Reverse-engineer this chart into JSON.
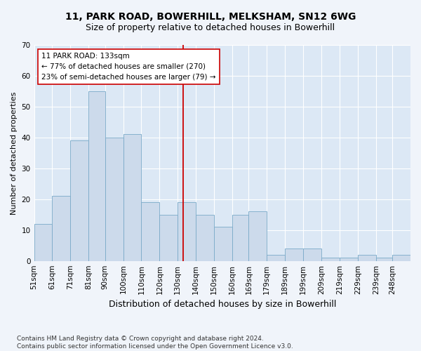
{
  "title": "11, PARK ROAD, BOWERHILL, MELKSHAM, SN12 6WG",
  "subtitle": "Size of property relative to detached houses in Bowerhill",
  "xlabel": "Distribution of detached houses by size in Bowerhill",
  "ylabel": "Number of detached properties",
  "bar_labels": [
    "51sqm",
    "61sqm",
    "71sqm",
    "81sqm",
    "90sqm",
    "100sqm",
    "110sqm",
    "120sqm",
    "130sqm",
    "140sqm",
    "150sqm",
    "160sqm",
    "169sqm",
    "179sqm",
    "189sqm",
    "199sqm",
    "209sqm",
    "219sqm",
    "229sqm",
    "239sqm",
    "248sqm"
  ],
  "bar_heights": [
    12,
    21,
    39,
    55,
    40,
    41,
    19,
    15,
    19,
    15,
    11,
    15,
    16,
    2,
    4,
    4,
    1,
    1,
    2,
    1,
    2
  ],
  "bin_edges": [
    51,
    61,
    71,
    81,
    90,
    100,
    110,
    120,
    130,
    140,
    150,
    160,
    169,
    179,
    189,
    199,
    209,
    219,
    229,
    239,
    248,
    258
  ],
  "bar_color": "#ccdaeb",
  "bar_edge_color": "#7aaac8",
  "vline_x": 133,
  "vline_color": "#cc0000",
  "annotation_text": "11 PARK ROAD: 133sqm\n← 77% of detached houses are smaller (270)\n23% of semi-detached houses are larger (79) →",
  "annotation_box_color": "#ffffff",
  "annotation_box_edge": "#cc0000",
  "ylim": [
    0,
    70
  ],
  "yticks": [
    0,
    10,
    20,
    30,
    40,
    50,
    60,
    70
  ],
  "background_color": "#dce8f5",
  "fig_background_color": "#f0f4fa",
  "footer_text": "Contains HM Land Registry data © Crown copyright and database right 2024.\nContains public sector information licensed under the Open Government Licence v3.0.",
  "title_fontsize": 10,
  "subtitle_fontsize": 9,
  "xlabel_fontsize": 9,
  "ylabel_fontsize": 8,
  "tick_fontsize": 7.5,
  "annotation_fontsize": 7.5,
  "footer_fontsize": 6.5
}
